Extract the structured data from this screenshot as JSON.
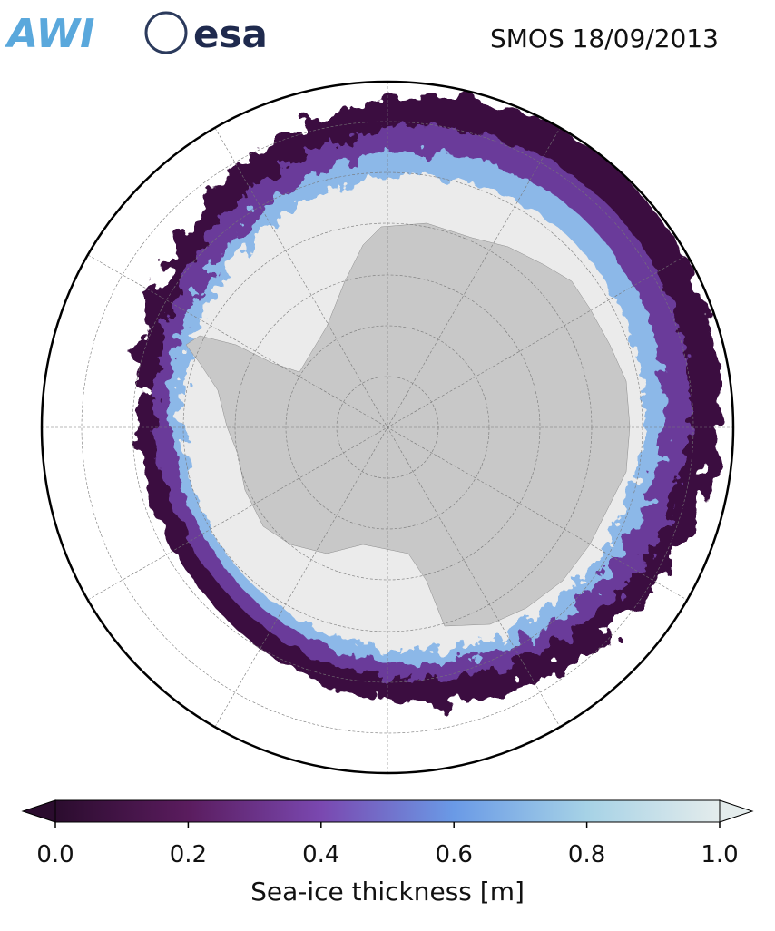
{
  "header": {
    "logos": [
      "AWI",
      "esa"
    ],
    "title": "SMOS 18/09/2013"
  },
  "colorbar": {
    "label": "Sea-ice thickness [m]",
    "range": [
      0,
      1
    ],
    "ticks": [
      {
        "value": 0,
        "label": "0.0"
      },
      {
        "value": 0.2,
        "label": "0.2"
      },
      {
        "value": 0.4,
        "label": "0.4"
      },
      {
        "value": 0.6,
        "label": "0.6"
      },
      {
        "value": 0.8,
        "label": "0.8"
      },
      {
        "value": 1,
        "label": "1.0"
      }
    ],
    "color_stops": [
      {
        "value": 0,
        "color": "#2b0c2e"
      },
      {
        "value": 0.2,
        "color": "#5a1c5e"
      },
      {
        "value": 0.4,
        "color": "#7a48b0"
      },
      {
        "value": 0.6,
        "color": "#6a9ae6"
      },
      {
        "value": 0.8,
        "color": "#a6d2e6"
      },
      {
        "value": 1,
        "color": "#e4ecec"
      }
    ]
  }
}
